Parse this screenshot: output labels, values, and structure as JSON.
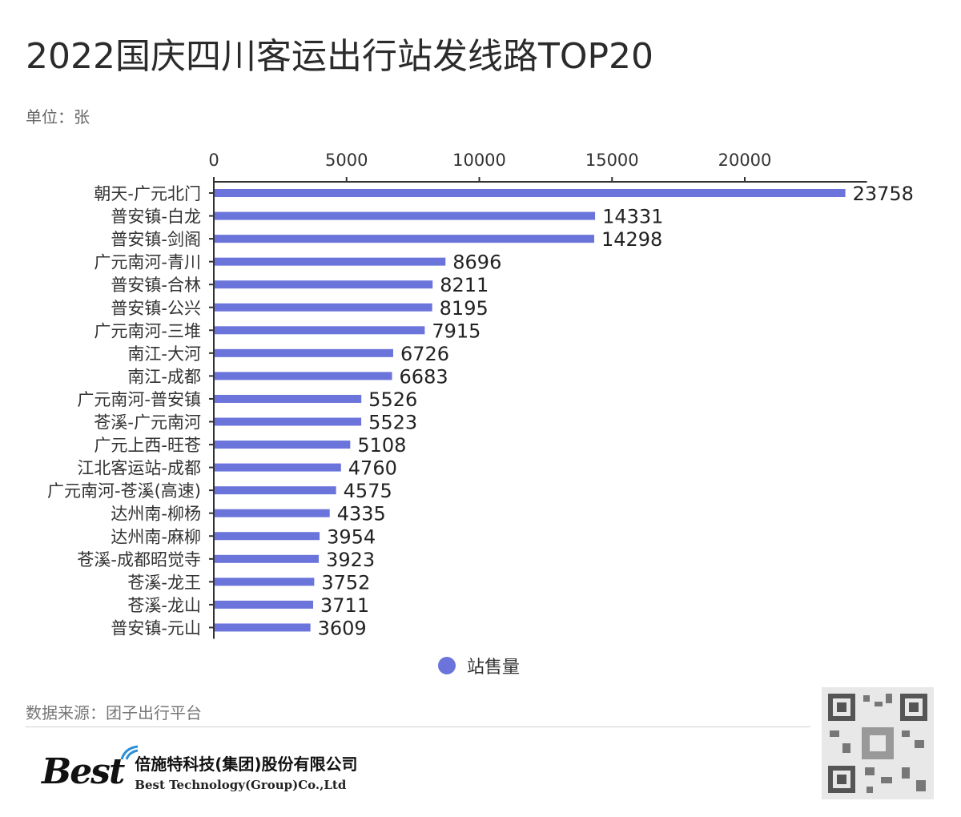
{
  "title": "2022国庆四川客运出行站发线路TOP20",
  "unit": "单位：张",
  "source": "数据来源：团子出行平台",
  "company": {
    "logo_text": "Best",
    "name_cn": "倍施特科技(集团)股份有限公司",
    "name_en": "Best Technology(Group)Co.,Ltd"
  },
  "colors": {
    "bar": "#6b74db",
    "axis": "#333333"
  },
  "chart_data": {
    "type": "bar",
    "orientation": "horizontal",
    "title": "2022国庆四川客运出行站发线路TOP20",
    "xlabel": "",
    "ylabel": "",
    "xlim": [
      0,
      24000
    ],
    "xticks": [
      0,
      5000,
      10000,
      15000,
      20000
    ],
    "axis_position": "top",
    "legend_position": "bottom",
    "categories": [
      "朝天-广元北门",
      "普安镇-白龙",
      "普安镇-剑阁",
      "广元南河-青川",
      "普安镇-合林",
      "普安镇-公兴",
      "广元南河-三堆",
      "南江-大河",
      "南江-成都",
      "广元南河-普安镇",
      "苍溪-广元南河",
      "广元上西-旺苍",
      "江北客运站-成都",
      "广元南河-苍溪(高速)",
      "达州南-柳杨",
      "达州南-麻柳",
      "苍溪-成都昭觉寺",
      "苍溪-龙王",
      "苍溪-龙山",
      "普安镇-元山"
    ],
    "series": [
      {
        "name": "站售量",
        "values": [
          23758,
          14331,
          14298,
          8696,
          8211,
          8195,
          7915,
          6726,
          6683,
          5526,
          5523,
          5108,
          4760,
          4575,
          4335,
          3954,
          3923,
          3752,
          3711,
          3609
        ]
      }
    ]
  }
}
